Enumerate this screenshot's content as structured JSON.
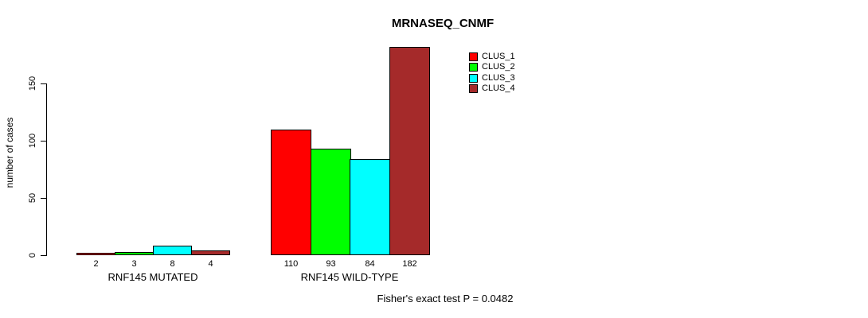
{
  "chart_data": {
    "type": "bar",
    "title": "MRNASEQ_CNMF",
    "ylabel": "number of cases",
    "yticks": [
      0,
      50,
      100,
      150
    ],
    "ylim": [
      0,
      185
    ],
    "grid": false,
    "legend_position": "top-right",
    "categories": [
      "RNF145 MUTATED",
      "RNF145 WILD-TYPE"
    ],
    "series": [
      {
        "name": "CLUS_1",
        "color": "#ff0000",
        "values": [
          2,
          110
        ]
      },
      {
        "name": "CLUS_2",
        "color": "#00ff00",
        "values": [
          3,
          93
        ]
      },
      {
        "name": "CLUS_3",
        "color": "#00ffff",
        "values": [
          8,
          84
        ]
      },
      {
        "name": "CLUS_4",
        "color": "#a52a2a",
        "values": [
          4,
          182
        ]
      }
    ],
    "bar_value_labels_shown": true,
    "annotation": "Fisher's exact test P = 0.0482"
  }
}
